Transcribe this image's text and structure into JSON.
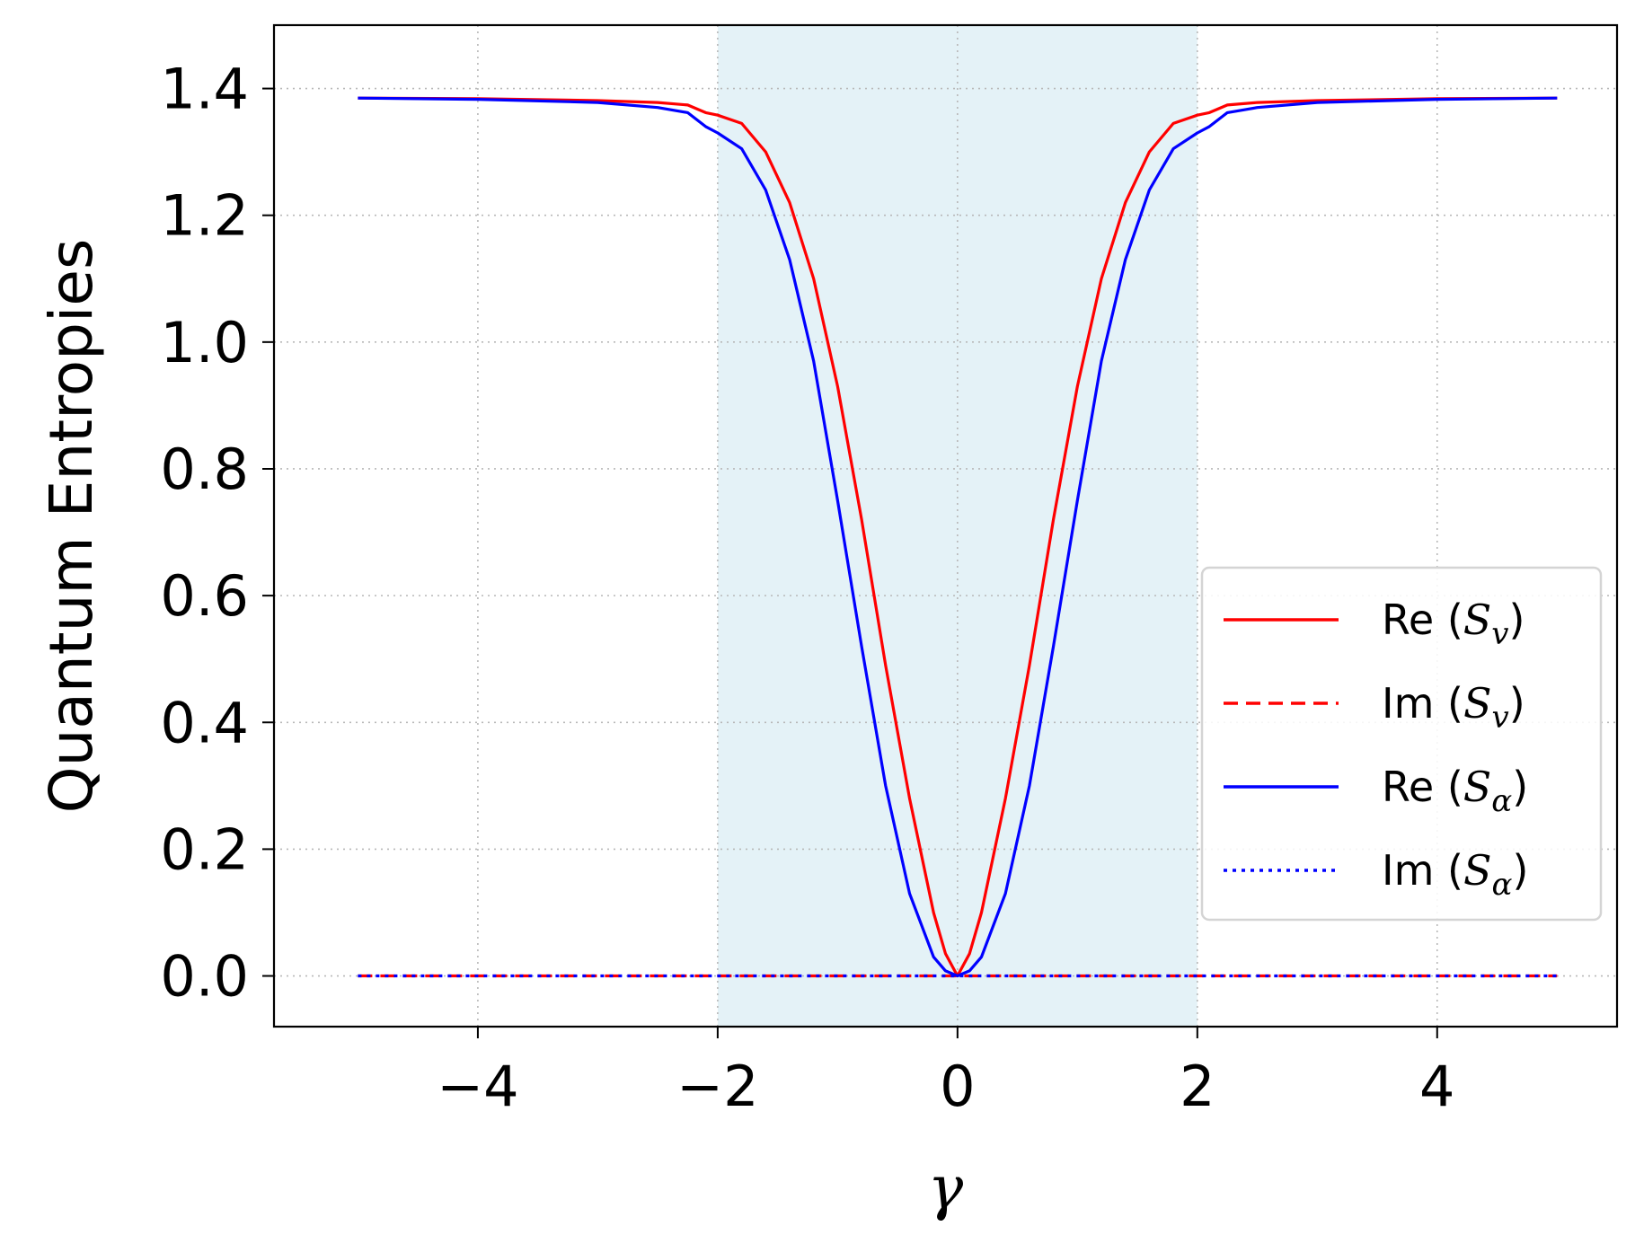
{
  "chart_data": {
    "type": "line",
    "ylabel": "Quantum Entropies",
    "xlabel": "γ",
    "xlim": [
      -5.7,
      5.5
    ],
    "ylim": [
      -0.08,
      1.5
    ],
    "xticks": [
      -4,
      -2,
      0,
      2,
      4
    ],
    "xtick_labels": [
      "−4",
      "−2",
      "0",
      "2",
      "4"
    ],
    "yticks": [
      0.0,
      0.2,
      0.4,
      0.6,
      0.8,
      1.0,
      1.2,
      1.4
    ],
    "ytick_labels": [
      "0.0",
      "0.2",
      "0.4",
      "0.6",
      "0.8",
      "1.0",
      "1.2",
      "1.4"
    ],
    "grid": true,
    "shaded_region": {
      "x_start": -2,
      "x_end": 2,
      "color": "#e4f2f7"
    },
    "legend_position": "center-right",
    "series": [
      {
        "name": "Re (S_v)",
        "name_prefix": "Re (",
        "name_symbol": "S",
        "name_subscript": "v",
        "name_suffix": ")",
        "color": "#ff0000",
        "linestyle": "solid",
        "x": [
          -5,
          -4,
          -3,
          -2.5,
          -2.25,
          -2.1,
          -2.0,
          -1.8,
          -1.6,
          -1.4,
          -1.2,
          -1.0,
          -0.8,
          -0.6,
          -0.4,
          -0.2,
          -0.1,
          0,
          0.1,
          0.2,
          0.4,
          0.6,
          0.8,
          1.0,
          1.2,
          1.4,
          1.6,
          1.8,
          2.0,
          2.1,
          2.25,
          2.5,
          3,
          4,
          5
        ],
        "y": [
          1.385,
          1.384,
          1.381,
          1.378,
          1.374,
          1.362,
          1.358,
          1.345,
          1.3,
          1.22,
          1.1,
          0.93,
          0.72,
          0.49,
          0.28,
          0.1,
          0.035,
          0.0,
          0.035,
          0.1,
          0.28,
          0.49,
          0.72,
          0.93,
          1.1,
          1.22,
          1.3,
          1.345,
          1.358,
          1.362,
          1.374,
          1.378,
          1.381,
          1.384,
          1.385
        ]
      },
      {
        "name": "Im (S_v)",
        "name_prefix": "Im (",
        "name_symbol": "S",
        "name_subscript": "v",
        "name_suffix": ")",
        "color": "#ff0000",
        "linestyle": "dashed",
        "x": [
          -5,
          5
        ],
        "y": [
          0,
          0
        ]
      },
      {
        "name": "Re (S_α)",
        "name_prefix": "Re (",
        "name_symbol": "S",
        "name_subscript": "α",
        "name_suffix": ")",
        "color": "#0000ff",
        "linestyle": "solid",
        "x": [
          -5,
          -4,
          -3,
          -2.5,
          -2.25,
          -2.1,
          -2.0,
          -1.8,
          -1.6,
          -1.4,
          -1.2,
          -1.0,
          -0.8,
          -0.6,
          -0.4,
          -0.2,
          -0.1,
          0,
          0.1,
          0.2,
          0.4,
          0.6,
          0.8,
          1.0,
          1.2,
          1.4,
          1.6,
          1.8,
          2.0,
          2.1,
          2.25,
          2.5,
          3,
          4,
          5
        ],
        "y": [
          1.385,
          1.383,
          1.378,
          1.37,
          1.362,
          1.34,
          1.33,
          1.305,
          1.24,
          1.13,
          0.97,
          0.75,
          0.52,
          0.3,
          0.13,
          0.03,
          0.008,
          0.0,
          0.008,
          0.03,
          0.13,
          0.3,
          0.52,
          0.75,
          0.97,
          1.13,
          1.24,
          1.305,
          1.33,
          1.34,
          1.362,
          1.37,
          1.378,
          1.383,
          1.385
        ]
      },
      {
        "name": "Im (S_α)",
        "name_prefix": "Im (",
        "name_symbol": "S",
        "name_subscript": "α",
        "name_suffix": ")",
        "color": "#0000ff",
        "linestyle": "dotted",
        "x": [
          -5,
          5
        ],
        "y": [
          0,
          0
        ]
      }
    ]
  }
}
